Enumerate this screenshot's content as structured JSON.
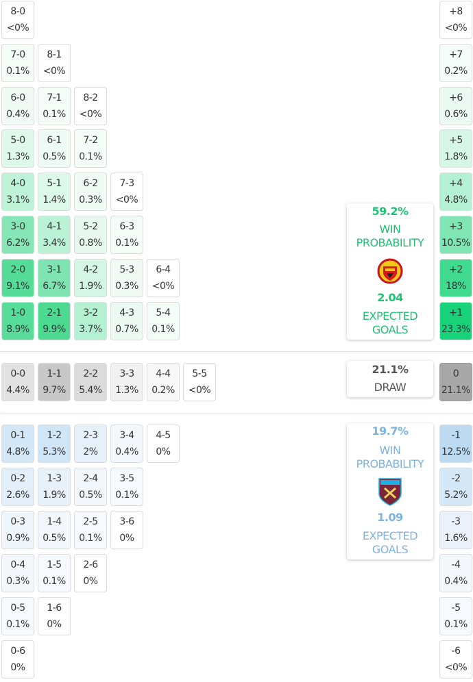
{
  "home": {
    "rows": [
      [
        {
          "score": "8-0",
          "pct": "<0%",
          "color": "#ffffff"
        }
      ],
      [
        {
          "score": "7-0",
          "pct": "0.1%",
          "color": "#f4fcf8"
        },
        {
          "score": "8-1",
          "pct": "<0%",
          "color": "#ffffff"
        }
      ],
      [
        {
          "score": "6-0",
          "pct": "0.4%",
          "color": "#f0fbf5"
        },
        {
          "score": "7-1",
          "pct": "0.1%",
          "color": "#f4fcf8"
        },
        {
          "score": "8-2",
          "pct": "<0%",
          "color": "#ffffff"
        }
      ],
      [
        {
          "score": "5-0",
          "pct": "1.3%",
          "color": "#def8ea"
        },
        {
          "score": "6-1",
          "pct": "0.5%",
          "color": "#eefbf4"
        },
        {
          "score": "7-2",
          "pct": "0.1%",
          "color": "#f4fcf8"
        }
      ],
      [
        {
          "score": "4-0",
          "pct": "3.1%",
          "color": "#bff3d8"
        },
        {
          "score": "5-1",
          "pct": "1.4%",
          "color": "#dcf8e9"
        },
        {
          "score": "6-2",
          "pct": "0.3%",
          "color": "#f1fbf6"
        },
        {
          "score": "7-3",
          "pct": "<0%",
          "color": "#ffffff"
        }
      ],
      [
        {
          "score": "3-0",
          "pct": "6.2%",
          "color": "#86e6b6"
        },
        {
          "score": "4-1",
          "pct": "3.4%",
          "color": "#b9f2d5"
        },
        {
          "score": "5-2",
          "pct": "0.8%",
          "color": "#e8faf0"
        },
        {
          "score": "6-3",
          "pct": "0.1%",
          "color": "#f4fcf8"
        }
      ],
      [
        {
          "score": "2-0",
          "pct": "9.1%",
          "color": "#55dc98"
        },
        {
          "score": "3-1",
          "pct": "6.7%",
          "color": "#7ee4b1"
        },
        {
          "score": "4-2",
          "pct": "1.9%",
          "color": "#d4f6e4"
        },
        {
          "score": "5-3",
          "pct": "0.3%",
          "color": "#f1fbf6"
        },
        {
          "score": "6-4",
          "pct": "<0%",
          "color": "#ffffff"
        }
      ],
      [
        {
          "score": "1-0",
          "pct": "8.9%",
          "color": "#58dc9a"
        },
        {
          "score": "2-1",
          "pct": "9.9%",
          "color": "#4cda93"
        },
        {
          "score": "3-2",
          "pct": "3.7%",
          "color": "#b3f1d2"
        },
        {
          "score": "4-3",
          "pct": "0.7%",
          "color": "#ebfaf2"
        },
        {
          "score": "5-4",
          "pct": "0.1%",
          "color": "#f4fcf8"
        }
      ]
    ],
    "margins": [
      {
        "label": "+8",
        "pct": "<0%",
        "color": "#ffffff"
      },
      {
        "label": "+7",
        "pct": "0.2%",
        "color": "#f3fcf8"
      },
      {
        "label": "+6",
        "pct": "0.6%",
        "color": "#ebfaf3"
      },
      {
        "label": "+5",
        "pct": "1.8%",
        "color": "#d6f7e7"
      },
      {
        "label": "+4",
        "pct": "4.8%",
        "color": "#b5f1d3"
      },
      {
        "label": "+3",
        "pct": "10.5%",
        "color": "#7ee5b3"
      },
      {
        "label": "+2",
        "pct": "18%",
        "color": "#40db8f"
      },
      {
        "label": "+1",
        "pct": "23.3%",
        "color": "#19d37a"
      }
    ],
    "summary": {
      "win_pct": "59.2%",
      "win_label": "WIN PROBABILITY",
      "xg": "2.04",
      "xg_label": "EXPECTED GOALS",
      "color": "#1fc271"
    }
  },
  "draw": {
    "cells": [
      {
        "score": "0-0",
        "pct": "4.4%",
        "color": "#e2e2e2"
      },
      {
        "score": "1-1",
        "pct": "9.7%",
        "color": "#c8c8c8"
      },
      {
        "score": "2-2",
        "pct": "5.4%",
        "color": "#dbdbdb"
      },
      {
        "score": "3-3",
        "pct": "1.3%",
        "color": "#f1f1f1"
      },
      {
        "score": "4-4",
        "pct": "0.2%",
        "color": "#f8f8f8"
      },
      {
        "score": "5-5",
        "pct": "<0%",
        "color": "#ffffff"
      }
    ],
    "margin": {
      "label": "0",
      "pct": "21.1%",
      "color": "#a8a8a8"
    },
    "summary": {
      "pct": "21.1%",
      "label": "DRAW"
    }
  },
  "away": {
    "rows": [
      [
        {
          "score": "0-1",
          "pct": "4.8%",
          "color": "#d4e7f7"
        },
        {
          "score": "1-2",
          "pct": "5.3%",
          "color": "#d0e5f6"
        },
        {
          "score": "2-3",
          "pct": "2%",
          "color": "#e6f0fa"
        },
        {
          "score": "3-4",
          "pct": "0.4%",
          "color": "#f3f8fd"
        },
        {
          "score": "4-5",
          "pct": "0%",
          "color": "#ffffff"
        }
      ],
      [
        {
          "score": "0-2",
          "pct": "2.6%",
          "color": "#e2eef9"
        },
        {
          "score": "1-3",
          "pct": "1.9%",
          "color": "#e7f1fa"
        },
        {
          "score": "2-4",
          "pct": "0.5%",
          "color": "#f2f7fc"
        },
        {
          "score": "3-5",
          "pct": "0.1%",
          "color": "#f6f9fd"
        }
      ],
      [
        {
          "score": "0-3",
          "pct": "0.9%",
          "color": "#eef5fb"
        },
        {
          "score": "1-4",
          "pct": "0.5%",
          "color": "#f2f7fc"
        },
        {
          "score": "2-5",
          "pct": "0.1%",
          "color": "#f6f9fd"
        },
        {
          "score": "3-6",
          "pct": "0%",
          "color": "#ffffff"
        }
      ],
      [
        {
          "score": "0-4",
          "pct": "0.3%",
          "color": "#f4f8fd"
        },
        {
          "score": "1-5",
          "pct": "0.1%",
          "color": "#f6f9fd"
        },
        {
          "score": "2-6",
          "pct": "0%",
          "color": "#ffffff"
        }
      ],
      [
        {
          "score": "0-5",
          "pct": "0.1%",
          "color": "#f6f9fd"
        },
        {
          "score": "1-6",
          "pct": "0%",
          "color": "#ffffff"
        }
      ],
      [
        {
          "score": "0-6",
          "pct": "0%",
          "color": "#ffffff"
        }
      ]
    ],
    "margins": [
      {
        "label": "-1",
        "pct": "12.5%",
        "color": "#bcdaf2"
      },
      {
        "label": "-2",
        "pct": "5.2%",
        "color": "#d5e8f7"
      },
      {
        "label": "-3",
        "pct": "1.6%",
        "color": "#e9f2fb"
      },
      {
        "label": "-4",
        "pct": "0.4%",
        "color": "#f3f8fd"
      },
      {
        "label": "-5",
        "pct": "0.1%",
        "color": "#f6f9fd"
      },
      {
        "label": "-6",
        "pct": "<0%",
        "color": "#ffffff"
      }
    ],
    "summary": {
      "win_pct": "19.7%",
      "win_label": "WIN PROBABILITY",
      "xg": "1.09",
      "xg_label": "EXPECTED GOALS",
      "color": "#7db3df"
    }
  }
}
